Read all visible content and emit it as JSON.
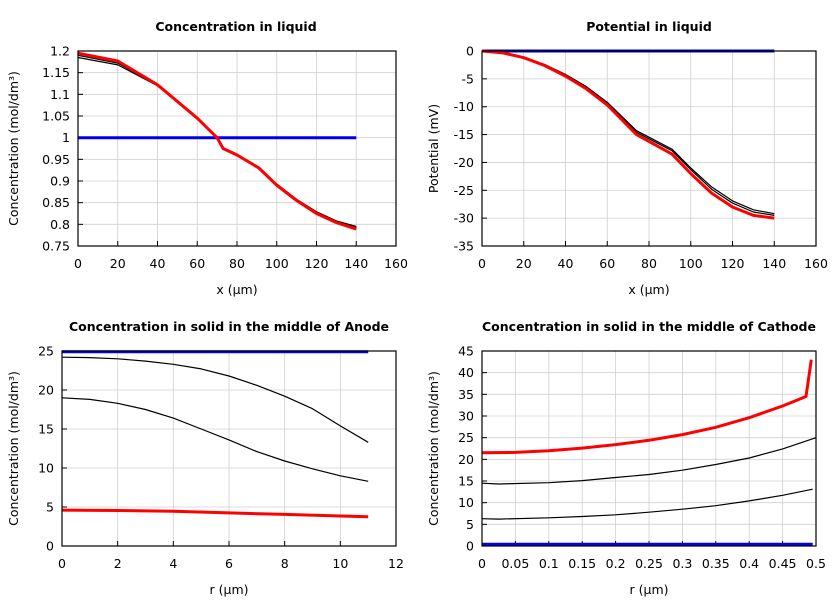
{
  "colors": {
    "red": "#ff0000",
    "blue": "#0000ee",
    "black": "#000000",
    "grid": "#d0d0d0"
  },
  "chart_data": [
    {
      "type": "line",
      "title": "Concentration in liquid",
      "xlabel": "x (µm)",
      "ylabel": "Concentration (mol/dm³)",
      "xlim": [
        0,
        160
      ],
      "ylim": [
        0.75,
        1.2
      ],
      "grid": true,
      "xticks": [
        "0",
        "20",
        "40",
        "60",
        "80",
        "100",
        "120",
        "140",
        "160"
      ],
      "xtick_values": [
        0,
        20,
        40,
        60,
        80,
        100,
        120,
        140,
        160
      ],
      "yticks": [
        "0.75",
        "0.8",
        "0.85",
        "0.9",
        "0.95",
        "1",
        "1.05",
        "1.1",
        "1.15",
        "1.2"
      ],
      "ytick_values": [
        0.75,
        0.8,
        0.85,
        0.9,
        0.95,
        1,
        1.05,
        1.1,
        1.15,
        1.2
      ],
      "series": [
        {
          "color": "blue",
          "width": 3,
          "x": [
            0,
            140
          ],
          "y": [
            1.0,
            1.0
          ]
        },
        {
          "color": "black",
          "width": 1.2,
          "x": [
            0,
            20,
            40,
            60,
            70,
            73,
            80,
            91,
            100,
            110,
            120,
            130,
            140
          ],
          "y": [
            1.185,
            1.168,
            1.12,
            1.045,
            1.0,
            0.977,
            0.962,
            0.932,
            0.893,
            0.858,
            0.829,
            0.808,
            0.795
          ]
        },
        {
          "color": "black",
          "width": 1.2,
          "x": [
            0,
            20,
            40,
            60,
            70,
            73,
            80,
            91,
            100,
            110,
            120,
            130,
            140
          ],
          "y": [
            1.19,
            1.172,
            1.121,
            1.045,
            1.0,
            0.976,
            0.961,
            0.931,
            0.892,
            0.857,
            0.827,
            0.806,
            0.792
          ]
        },
        {
          "color": "red",
          "width": 3,
          "x": [
            0,
            20,
            40,
            60,
            70,
            73,
            80,
            91,
            100,
            110,
            120,
            130,
            140
          ],
          "y": [
            1.195,
            1.177,
            1.122,
            1.045,
            1.0,
            0.975,
            0.96,
            0.93,
            0.89,
            0.855,
            0.825,
            0.804,
            0.789
          ]
        }
      ]
    },
    {
      "type": "line",
      "title": "Potential in liquid",
      "xlabel": "x (µm)",
      "ylabel": "Potential (mV)",
      "xlim": [
        0,
        160
      ],
      "ylim": [
        -35,
        0
      ],
      "grid": true,
      "xticks": [
        "0",
        "20",
        "40",
        "60",
        "80",
        "100",
        "120",
        "140",
        "160"
      ],
      "xtick_values": [
        0,
        20,
        40,
        60,
        80,
        100,
        120,
        140,
        160
      ],
      "yticks": [
        "-35",
        "-30",
        "-25",
        "-20",
        "-15",
        "-10",
        "-5",
        "0"
      ],
      "ytick_values": [
        -35,
        -30,
        -25,
        -20,
        -15,
        -10,
        -5,
        0
      ],
      "series": [
        {
          "color": "blue",
          "width": 3,
          "x": [
            0,
            140
          ],
          "y": [
            0,
            0
          ]
        },
        {
          "color": "black",
          "width": 1.2,
          "x": [
            0,
            10,
            20,
            30,
            40,
            50,
            60,
            74,
            91,
            100,
            110,
            120,
            130,
            140
          ],
          "y": [
            0,
            -0.3,
            -1.1,
            -2.4,
            -4.2,
            -6.4,
            -9.2,
            -14.3,
            -17.6,
            -21.0,
            -24.4,
            -26.9,
            -28.5,
            -29.2
          ]
        },
        {
          "color": "black",
          "width": 1.2,
          "x": [
            0,
            10,
            20,
            30,
            40,
            50,
            60,
            74,
            91,
            100,
            110,
            120,
            130,
            140
          ],
          "y": [
            0,
            -0.3,
            -1.15,
            -2.5,
            -4.3,
            -6.6,
            -9.4,
            -14.6,
            -17.9,
            -21.3,
            -24.8,
            -27.3,
            -28.9,
            -29.5
          ]
        },
        {
          "color": "red",
          "width": 3,
          "x": [
            0,
            10,
            20,
            30,
            40,
            50,
            60,
            74,
            91,
            100,
            110,
            120,
            130,
            140
          ],
          "y": [
            0,
            -0.35,
            -1.2,
            -2.6,
            -4.5,
            -6.8,
            -9.7,
            -15.0,
            -18.5,
            -22.0,
            -25.5,
            -28.0,
            -29.5,
            -30.0
          ]
        }
      ]
    },
    {
      "type": "line",
      "title": "Concentration in solid in the middle of Anode",
      "xlabel": "r (µm)",
      "ylabel": "Concentration (mol/dm³)",
      "xlim": [
        0,
        12
      ],
      "ylim": [
        0,
        25
      ],
      "grid": true,
      "xticks": [
        "0",
        "2",
        "4",
        "6",
        "8",
        "10",
        "12"
      ],
      "xtick_values": [
        0,
        2,
        4,
        6,
        8,
        10,
        12
      ],
      "yticks": [
        "0",
        "5",
        "10",
        "15",
        "20",
        "25"
      ],
      "ytick_values": [
        0,
        5,
        10,
        15,
        20,
        25
      ],
      "series": [
        {
          "color": "blue",
          "width": 3,
          "x": [
            0,
            11
          ],
          "y": [
            24.9,
            24.9
          ]
        },
        {
          "color": "black",
          "width": 1.2,
          "x": [
            0,
            1,
            2,
            3,
            4,
            5,
            6,
            7,
            8,
            9,
            10,
            11
          ],
          "y": [
            24.2,
            24.15,
            24.0,
            23.7,
            23.3,
            22.7,
            21.8,
            20.6,
            19.2,
            17.6,
            15.4,
            13.3
          ]
        },
        {
          "color": "black",
          "width": 1.2,
          "x": [
            0,
            1,
            2,
            3,
            4,
            5,
            6,
            7,
            8,
            9,
            10,
            11
          ],
          "y": [
            19.0,
            18.8,
            18.3,
            17.5,
            16.4,
            15.0,
            13.6,
            12.1,
            10.9,
            9.9,
            9.0,
            8.3
          ]
        },
        {
          "color": "red",
          "width": 3,
          "x": [
            0,
            2,
            4,
            6,
            8,
            10,
            11
          ],
          "y": [
            4.6,
            4.55,
            4.45,
            4.25,
            4.05,
            3.85,
            3.75
          ]
        }
      ]
    },
    {
      "type": "line",
      "title": "Concentration in solid in the middle of Cathode",
      "xlabel": "r (µm)",
      "ylabel": "Concentration (mol/dm³)",
      "xlim": [
        0,
        0.5
      ],
      "ylim": [
        0,
        45
      ],
      "grid": true,
      "xticks": [
        "0",
        "0.05",
        "0.1",
        "0.15",
        "0.2",
        "0.25",
        "0.3",
        "0.35",
        "0.4",
        "0.45",
        "0.5"
      ],
      "xtick_values": [
        0,
        0.05,
        0.1,
        0.15,
        0.2,
        0.25,
        0.3,
        0.35,
        0.4,
        0.45,
        0.5
      ],
      "yticks": [
        "0",
        "5",
        "10",
        "15",
        "20",
        "25",
        "30",
        "35",
        "40",
        "45"
      ],
      "ytick_values": [
        0,
        5,
        10,
        15,
        20,
        25,
        30,
        35,
        40,
        45
      ],
      "series": [
        {
          "color": "blue",
          "width": 3,
          "x": [
            0,
            0.495
          ],
          "y": [
            0.4,
            0.4
          ]
        },
        {
          "color": "black",
          "width": 1.2,
          "x": [
            0,
            0.025,
            0.1,
            0.15,
            0.2,
            0.25,
            0.3,
            0.35,
            0.4,
            0.45,
            0.495
          ],
          "y": [
            6.3,
            6.2,
            6.5,
            6.8,
            7.2,
            7.8,
            8.5,
            9.3,
            10.4,
            11.7,
            13.1
          ]
        },
        {
          "color": "black",
          "width": 1.2,
          "x": [
            0,
            0.025,
            0.1,
            0.15,
            0.2,
            0.25,
            0.3,
            0.35,
            0.4,
            0.45,
            0.5
          ],
          "y": [
            14.5,
            14.3,
            14.6,
            15.1,
            15.8,
            16.5,
            17.5,
            18.8,
            20.3,
            22.4,
            25.0
          ]
        },
        {
          "color": "red",
          "width": 3,
          "x": [
            0,
            0.05,
            0.1,
            0.15,
            0.2,
            0.25,
            0.3,
            0.35,
            0.4,
            0.45,
            0.485,
            0.493
          ],
          "y": [
            21.5,
            21.6,
            22.0,
            22.6,
            23.4,
            24.4,
            25.7,
            27.4,
            29.6,
            32.3,
            34.5,
            43.0
          ]
        }
      ]
    }
  ]
}
